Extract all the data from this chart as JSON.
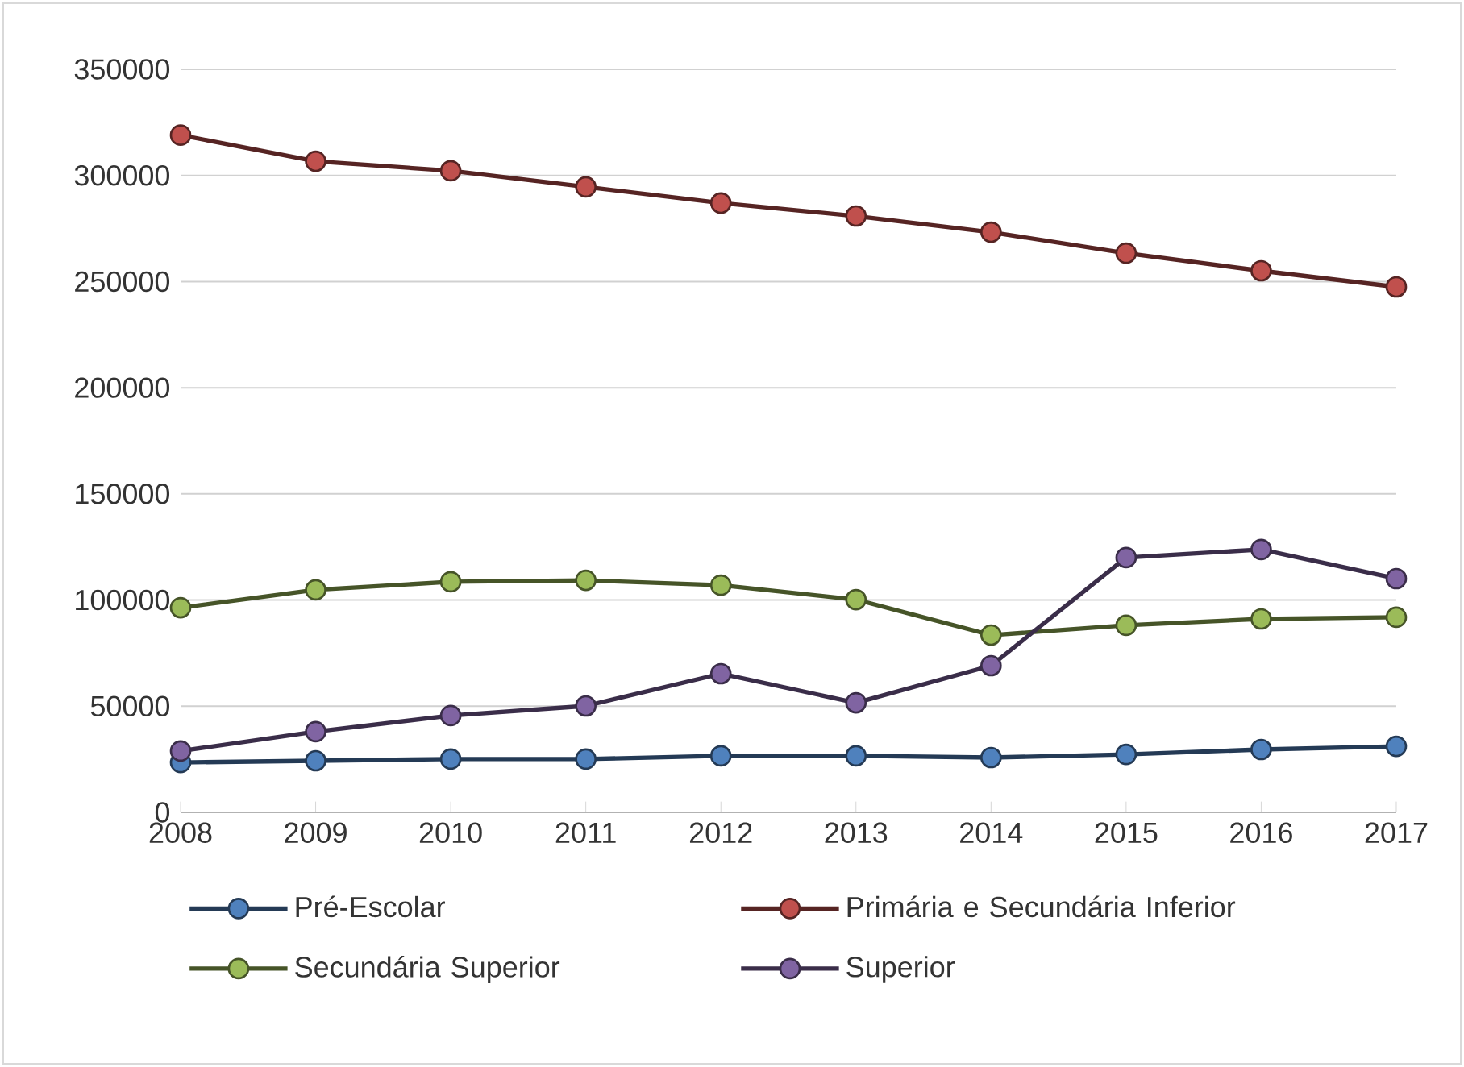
{
  "chart_data": {
    "type": "line",
    "categories": [
      "2008",
      "2009",
      "2010",
      "2011",
      "2012",
      "2013",
      "2014",
      "2015",
      "2016",
      "2017"
    ],
    "series": [
      {
        "name": "Pré-Escolar",
        "color": "#4f81bd",
        "values": [
          23500,
          24300,
          25100,
          25100,
          26600,
          26600,
          25800,
          27300,
          29600,
          31100
        ]
      },
      {
        "name": "Primária e Secundária Inferior",
        "color": "#c0504d",
        "values": [
          319000,
          306700,
          302200,
          294600,
          287000,
          280900,
          273300,
          263400,
          255100,
          247500
        ]
      },
      {
        "name": "Secundária Superior",
        "color": "#9bbb59",
        "values": [
          96400,
          104800,
          108600,
          109300,
          107000,
          100200,
          83500,
          88100,
          91100,
          91900
        ]
      },
      {
        "name": "Superior",
        "color": "#8064a2",
        "values": [
          28900,
          38000,
          45600,
          50100,
          65300,
          51600,
          69100,
          120000,
          123800,
          110100
        ]
      }
    ],
    "ylim": [
      0,
      350000
    ],
    "yticks": [
      0,
      50000,
      100000,
      150000,
      200000,
      250000,
      300000,
      350000
    ],
    "grid": "y",
    "legend": "bottom",
    "marker": "circle",
    "line_style": "solid"
  }
}
